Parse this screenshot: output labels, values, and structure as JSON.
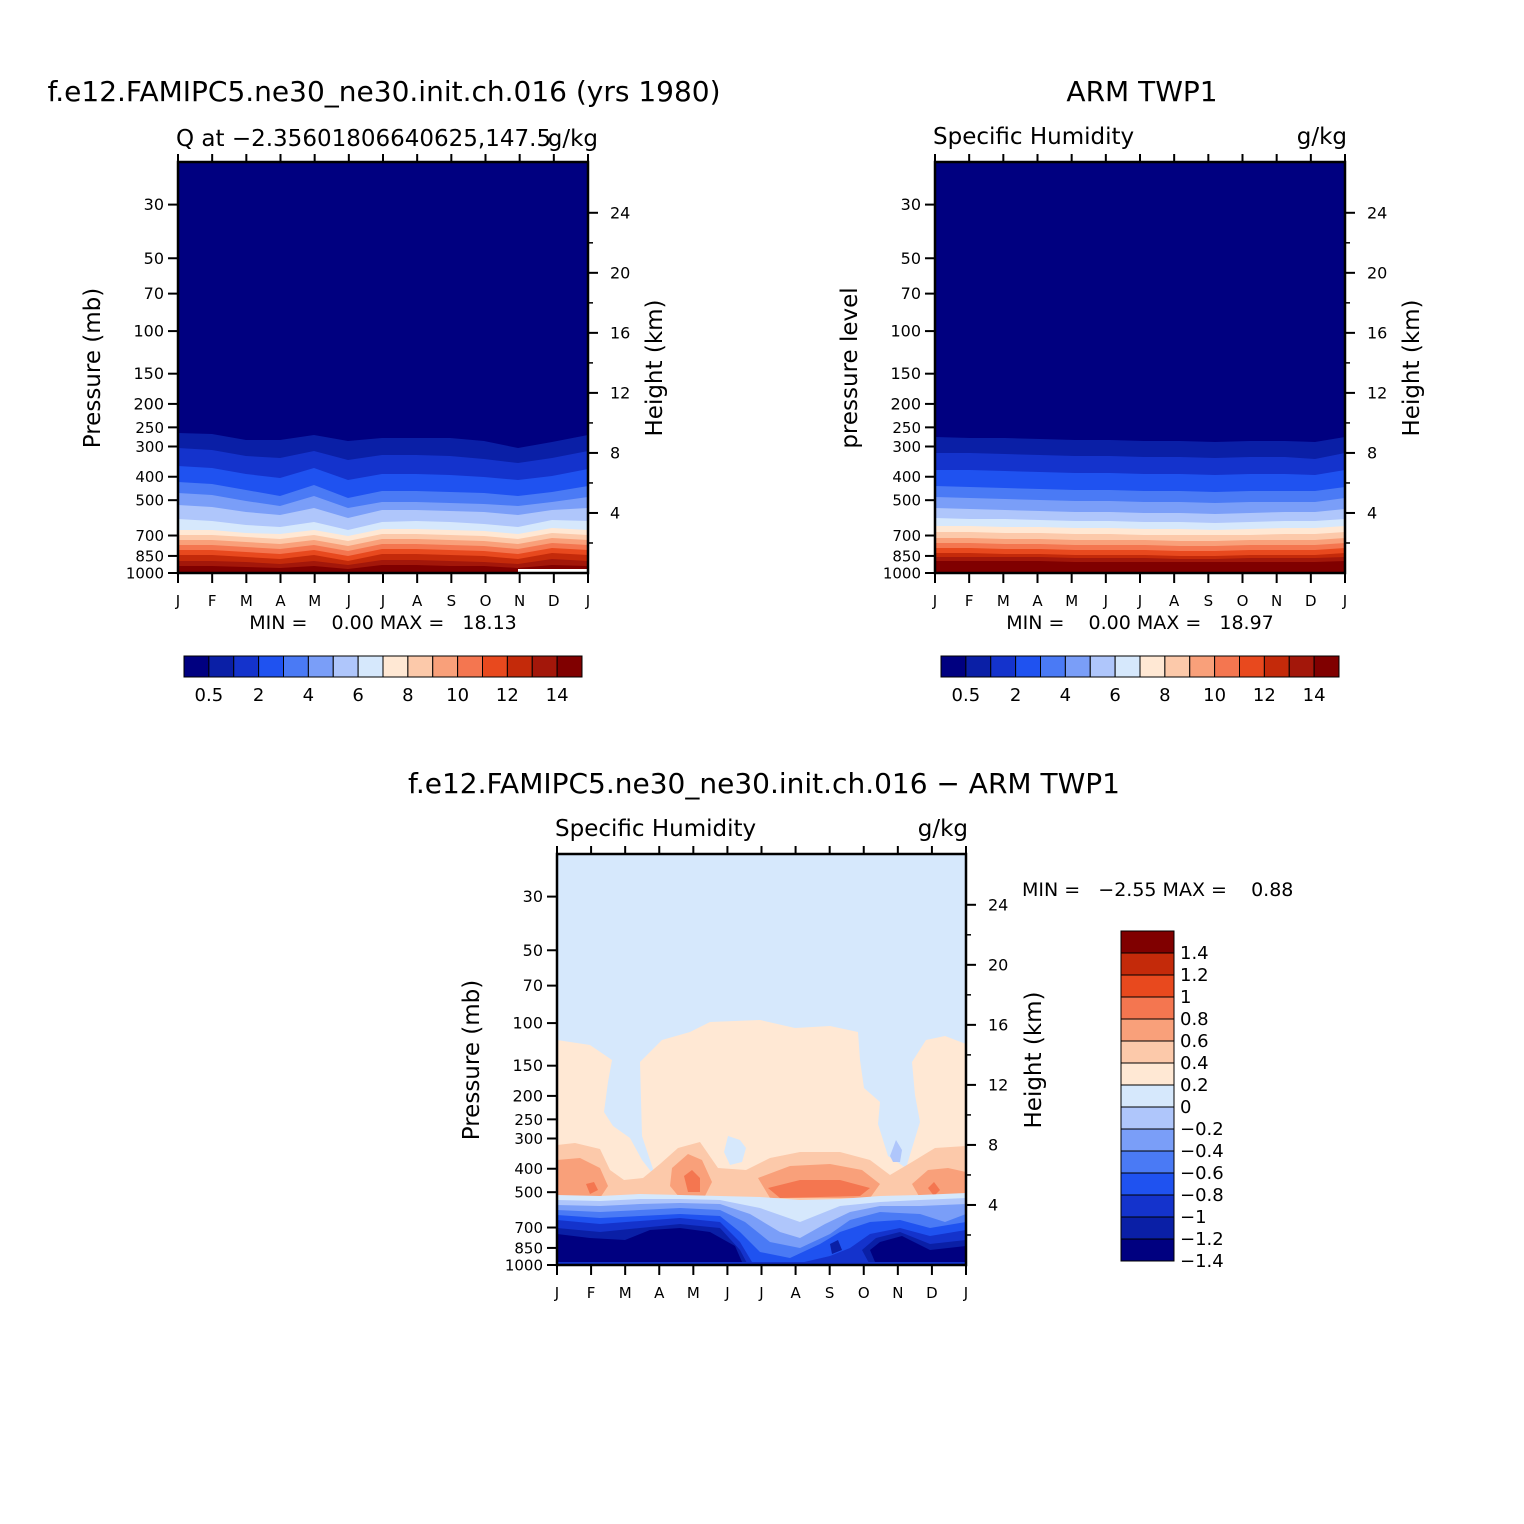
{
  "months": [
    "J",
    "F",
    "M",
    "A",
    "M",
    "J",
    "J",
    "A",
    "S",
    "O",
    "N",
    "D",
    "J"
  ],
  "pressure_levels": [
    30,
    50,
    70,
    100,
    150,
    200,
    250,
    300,
    400,
    500,
    700,
    850,
    1000
  ],
  "height_ticks": [
    24,
    20,
    16,
    12,
    8,
    4
  ],
  "colors": {
    "abs": [
      "#000080",
      "#0a1fa6",
      "#1433cc",
      "#1f52f0",
      "#4a7af5",
      "#7a9ef8",
      "#afc6fb",
      "#d6e8fc",
      "#ffe8d4",
      "#fcc9aa",
      "#f9a07a",
      "#f47650",
      "#e8491e",
      "#c42a0a",
      "#a3170a",
      "#800000"
    ],
    "diff": [
      "#000080",
      "#0a1fa6",
      "#1433cc",
      "#1f52f0",
      "#4a7af5",
      "#7a9ef8",
      "#afc6fb",
      "#d6e8fc",
      "#ffe8d4",
      "#fcc9aa",
      "#f9a07a",
      "#f47650",
      "#e8491e",
      "#c42a0a",
      "#800000"
    ]
  },
  "panel_model": {
    "title": "f.e12.FAMIPC5.ne30_ne30.init.ch.016 (yrs 1980)",
    "subtitle_left": "Q at −2.35601806640625,147.5",
    "subtitle_right": "g/kg",
    "ylabel": "Pressure (mb)",
    "ylabel_right": "Height (km)",
    "minmax": "MIN =    0.00 MAX =   18.13",
    "colorbar_labels": [
      "0.5",
      "2",
      "4",
      "6",
      "8",
      "10",
      "12",
      "14"
    ]
  },
  "panel_obs": {
    "title": "ARM TWP1",
    "subtitle_left": "Specific Humidity",
    "subtitle_right": "g/kg",
    "ylabel": "pressure level",
    "ylabel_right": "Height (km)",
    "minmax": "MIN =    0.00 MAX =   18.97",
    "colorbar_labels": [
      "0.5",
      "2",
      "4",
      "6",
      "8",
      "10",
      "12",
      "14"
    ]
  },
  "panel_diff": {
    "title": "f.e12.FAMIPC5.ne30_ne30.init.ch.016 − ARM TWP1",
    "subtitle_left": "Specific Humidity",
    "subtitle_right": "g/kg",
    "ylabel": "Pressure (mb)",
    "ylabel_right": "Height (km)",
    "minmax": "MIN =   −2.55 MAX =    0.88",
    "colorbar_labels": [
      "1.4",
      "1.2",
      "1",
      "0.8",
      "0.6",
      "0.4",
      "0.2",
      "0",
      "−0.2",
      "−0.4",
      "−0.6",
      "−0.8",
      "−1",
      "−1.2",
      "−1.4"
    ]
  },
  "chart_data": [
    {
      "type": "heatmap",
      "title": "f.e12.FAMIPC5.ne30_ne30.init.ch.016 (yrs 1980)",
      "xlabel": "",
      "ylabel": "Pressure (mb)",
      "units": "g/kg",
      "x": [
        "J",
        "F",
        "M",
        "A",
        "M",
        "J",
        "J",
        "A",
        "S",
        "O",
        "N",
        "D",
        "J"
      ],
      "y_levels_mb": [
        1000,
        850,
        700,
        500,
        400,
        300,
        200,
        100,
        50,
        30
      ],
      "values_surface_to_top": [
        17.5,
        12.5,
        7.8,
        4.0,
        2.5,
        0.8,
        0.1,
        0.0,
        0.0,
        0.0
      ],
      "contour_levels": [
        0.5,
        1,
        2,
        3,
        4,
        5,
        6,
        7,
        8,
        9,
        10,
        11,
        12,
        13,
        14
      ],
      "min": 0.0,
      "max": 18.13
    },
    {
      "type": "heatmap",
      "title": "ARM TWP1",
      "xlabel": "",
      "ylabel": "pressure level",
      "units": "g/kg",
      "x": [
        "J",
        "F",
        "M",
        "A",
        "M",
        "J",
        "J",
        "A",
        "S",
        "O",
        "N",
        "D",
        "J"
      ],
      "y_levels_mb": [
        1000,
        850,
        700,
        500,
        400,
        300,
        200,
        100,
        50,
        30
      ],
      "values_surface_to_top": [
        18.5,
        13.5,
        8.5,
        4.5,
        2.8,
        0.9,
        0.1,
        0.0,
        0.0,
        0.0
      ],
      "contour_levels": [
        0.5,
        1,
        2,
        3,
        4,
        5,
        6,
        7,
        8,
        9,
        10,
        11,
        12,
        13,
        14
      ],
      "min": 0.0,
      "max": 18.97
    },
    {
      "type": "heatmap",
      "title": "f.e12.FAMIPC5.ne30_ne30.init.ch.016 − ARM TWP1",
      "xlabel": "",
      "ylabel": "Pressure (mb)",
      "units": "g/kg",
      "x": [
        "J",
        "F",
        "M",
        "A",
        "M",
        "J",
        "J",
        "A",
        "S",
        "O",
        "N",
        "D",
        "J"
      ],
      "y_levels_mb": [
        1000,
        850,
        700,
        500,
        400,
        300,
        200,
        100,
        50,
        30
      ],
      "contour_levels": [
        -1.4,
        -1.2,
        -1,
        -0.8,
        -0.6,
        -0.4,
        -0.2,
        0,
        0.2,
        0.4,
        0.6,
        0.8,
        1,
        1.2,
        1.4
      ],
      "min": -2.55,
      "max": 0.88
    }
  ]
}
